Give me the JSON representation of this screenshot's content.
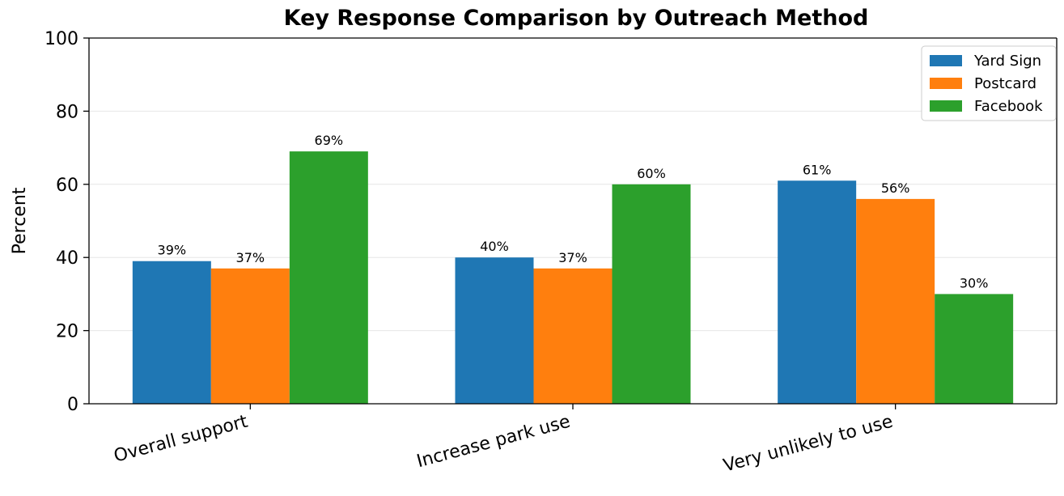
{
  "chart_data": {
    "type": "bar",
    "title": "Key Response Comparison by Outreach Method",
    "ylabel": "Percent",
    "xlabel": "",
    "ylim": [
      0,
      100
    ],
    "yticks": [
      0,
      20,
      40,
      60,
      80,
      100
    ],
    "grid": "y-axis",
    "legend_position": "top-right",
    "categories": [
      "Overall support",
      "Increase park use",
      "Very unlikely to use"
    ],
    "series": [
      {
        "name": "Yard Sign",
        "color": "#1f77b4",
        "values": [
          39,
          40,
          61
        ],
        "labels": [
          "39%",
          "40%",
          "61%"
        ]
      },
      {
        "name": "Postcard",
        "color": "#ff7f0e",
        "values": [
          37,
          37,
          56
        ],
        "labels": [
          "37%",
          "37%",
          "56%"
        ]
      },
      {
        "name": "Facebook",
        "color": "#2ca02c",
        "values": [
          69,
          60,
          30
        ],
        "labels": [
          "69%",
          "60%",
          "30%"
        ]
      }
    ]
  }
}
